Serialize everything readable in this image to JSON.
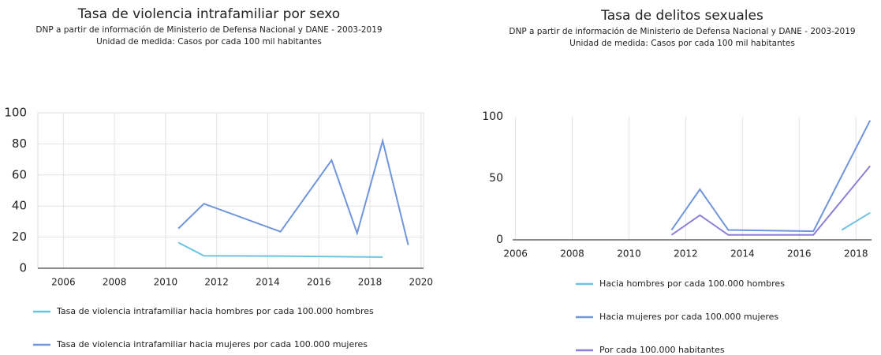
{
  "chart_data": [
    {
      "type": "line",
      "title": "Tasa de violencia intrafamiliar por sexo",
      "subtitle": [
        "DNP a partir de información de Ministerio de Defensa Nacional y DANE - 2003-2019",
        "Unidad de medida: Casos por cada 100 mil habitantes"
      ],
      "x": [
        2010.5,
        2011.5,
        2014.5,
        2016.5,
        2017.5,
        2018.5,
        2019.5
      ],
      "series": [
        {
          "name": "Tasa de violencia intrafamiliar hacia hombres por cada 100.000 hombres",
          "color": "#6cc3e0",
          "values": [
            16.5,
            8,
            7.8,
            7.5,
            7.3,
            7.2,
            null
          ]
        },
        {
          "name": "Tasa de violencia intrafamiliar hacia mujeres por cada 100.000 mujeres",
          "color": "#6f95dc",
          "values": [
            25.5,
            41.5,
            23.5,
            69.5,
            22.5,
            82,
            15
          ]
        }
      ],
      "xlim": [
        2005,
        2020.1
      ],
      "xticks": [
        2006,
        2008,
        2010,
        2012,
        2014,
        2016,
        2018,
        2020
      ],
      "ylim": [
        0,
        100
      ],
      "yticks": [
        0,
        20,
        40,
        60,
        80,
        100
      ],
      "grid": true
    },
    {
      "type": "line",
      "title": "Tasa de delitos sexuales",
      "subtitle": [
        "DNP a partir de información de Ministerio de Defensa Nacional y DANE - 2003-2019",
        "Unidad de medida: Casos por cada 100 mil habitantes"
      ],
      "x": [
        2011.5,
        2012.5,
        2013.5,
        2016.5,
        2017.5,
        2018.5
      ],
      "series": [
        {
          "name": "Hacia hombres por cada 100.000 hombres",
          "color": "#6cc3e0",
          "values": [
            null,
            null,
            null,
            null,
            8,
            22
          ]
        },
        {
          "name": "Hacia mujeres por cada 100.000 mujeres",
          "color": "#6f95dc",
          "values": [
            8,
            41,
            8,
            7,
            52,
            97
          ]
        },
        {
          "name": "Por cada 100.000 habitantes",
          "color": "#8a80d8",
          "values": [
            4,
            20,
            4,
            4,
            32,
            60
          ]
        }
      ],
      "xlim": [
        2005.9,
        2018.55
      ],
      "xticks": [
        2006,
        2008,
        2010,
        2012,
        2014,
        2016,
        2018
      ],
      "ylim": [
        0,
        100
      ],
      "yticks": [
        0,
        50,
        100
      ],
      "grid": true
    }
  ]
}
